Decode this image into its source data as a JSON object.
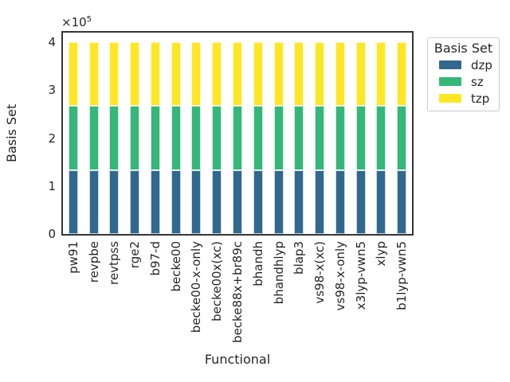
{
  "chart_data": {
    "type": "bar",
    "stacked": true,
    "title": "",
    "xlabel": "Functional",
    "ylabel": "Basis Set",
    "y_offset": {
      "base": "×10",
      "exponent": "5"
    },
    "categories": [
      "pw91",
      "revpbe",
      "revtpss",
      "rge2",
      "b97-d",
      "becke00",
      "becke00-x-only",
      "becke00x(xc)",
      "becke88x+br89c",
      "bhandh",
      "bhandhlyp",
      "blap3",
      "vs98-x(xc)",
      "vs98-x-only",
      "x3lyp-vwn5",
      "xlyp",
      "b1lyp-vwn5"
    ],
    "series": [
      {
        "name": "dzp",
        "color": "#31688e",
        "values": [
          133333,
          133333,
          133333,
          133333,
          133333,
          133333,
          133333,
          133333,
          133333,
          133333,
          133333,
          133333,
          133333,
          133333,
          133333,
          133333,
          133333
        ]
      },
      {
        "name": "sz",
        "color": "#35b779",
        "values": [
          133333,
          133333,
          133333,
          133333,
          133333,
          133333,
          133333,
          133333,
          133333,
          133333,
          133333,
          133333,
          133333,
          133333,
          133333,
          133333,
          133333
        ]
      },
      {
        "name": "tzp",
        "color": "#fde725",
        "values": [
          133334,
          133334,
          133334,
          133334,
          133334,
          133334,
          133334,
          133334,
          133334,
          133334,
          133334,
          133334,
          133334,
          133334,
          133334,
          133334,
          133334
        ]
      }
    ],
    "bar_total": 400000,
    "ylim": [
      0,
      420000
    ],
    "yticks": [
      {
        "value": 0,
        "label": "0"
      },
      {
        "value": 100000,
        "label": "1"
      },
      {
        "value": 200000,
        "label": "2"
      },
      {
        "value": 300000,
        "label": "3"
      },
      {
        "value": 400000,
        "label": "4"
      }
    ],
    "grid": false,
    "legend": {
      "title": "Basis Set",
      "position": "upper right outside"
    }
  },
  "axes": {
    "spine_color": "#363636",
    "text_color": "#262626"
  }
}
